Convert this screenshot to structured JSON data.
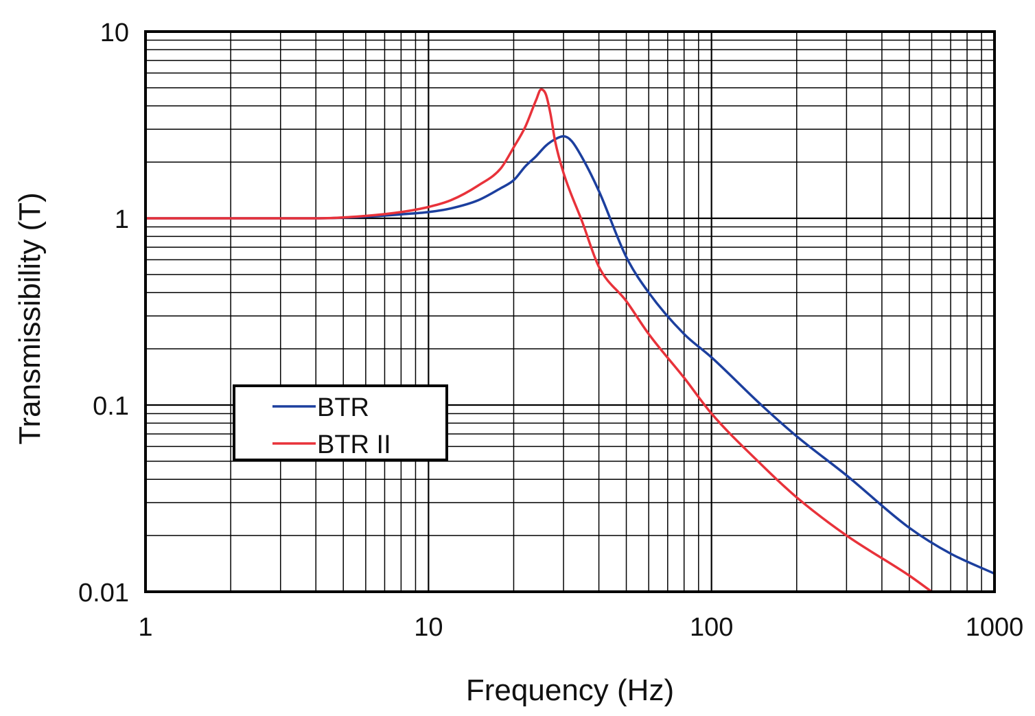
{
  "chart_data": {
    "type": "line",
    "xscale": "log",
    "yscale": "log",
    "xlim": [
      1,
      1000
    ],
    "ylim": [
      0.01,
      10
    ],
    "grid": true,
    "xlabel": "Frequency (Hz)",
    "ylabel": "Transmissibility (T)",
    "xticks": [
      "1",
      "10",
      "100",
      "1000"
    ],
    "yticks": [
      "10",
      "1",
      "0.1",
      "0.01"
    ],
    "legend_position": "lower-left",
    "series": [
      {
        "name": "BTR",
        "color": "#1c3f9e",
        "x": [
          1,
          2,
          4,
          6,
          8,
          10,
          12,
          15,
          18,
          20,
          22,
          24,
          26,
          28,
          30,
          32,
          35,
          40,
          50,
          60,
          80,
          100,
          150,
          200,
          300,
          500,
          700,
          1000
        ],
        "y": [
          1.0,
          1.0,
          1.0,
          1.02,
          1.05,
          1.08,
          1.13,
          1.25,
          1.45,
          1.6,
          1.9,
          2.15,
          2.45,
          2.65,
          2.75,
          2.6,
          2.1,
          1.4,
          0.62,
          0.4,
          0.24,
          0.18,
          0.1,
          0.068,
          0.042,
          0.022,
          0.016,
          0.0125
        ]
      },
      {
        "name": "BTR II",
        "color": "#e8323a",
        "x": [
          1,
          2,
          4,
          6,
          8,
          10,
          12,
          15,
          18,
          20,
          22,
          24,
          25,
          26,
          27,
          28,
          30,
          35,
          40,
          50,
          60,
          80,
          100,
          150,
          200,
          300,
          500,
          600
        ],
        "y": [
          1.0,
          1.0,
          1.0,
          1.03,
          1.08,
          1.15,
          1.25,
          1.5,
          1.85,
          2.4,
          3.1,
          4.3,
          4.9,
          4.6,
          3.6,
          2.6,
          1.75,
          0.95,
          0.55,
          0.36,
          0.24,
          0.14,
          0.09,
          0.048,
          0.032,
          0.02,
          0.0122,
          0.01
        ]
      }
    ]
  }
}
